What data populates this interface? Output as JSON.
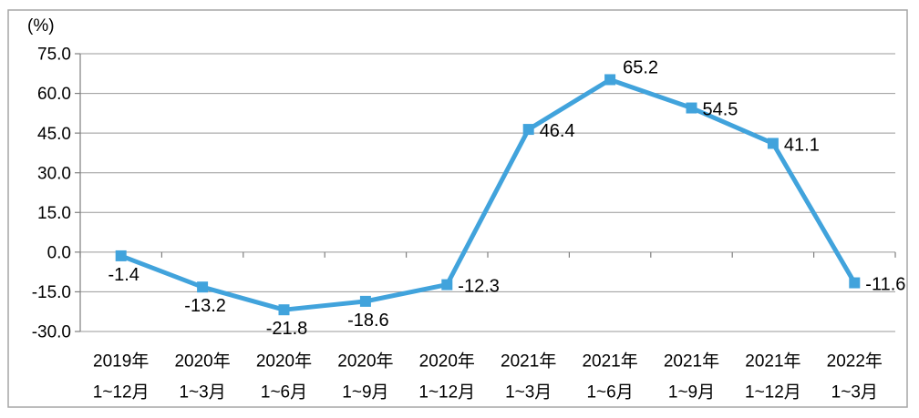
{
  "colors": {
    "series": "#41A3DC",
    "grid": "#999999",
    "axis": "#7F7F7F",
    "frame": "#A6A6A6",
    "text": "#000000",
    "background": "#FFFFFF"
  },
  "chart_data": {
    "type": "line",
    "title": "",
    "xlabel": "",
    "ylabel": "(%)",
    "ylim": [
      -30,
      75
    ],
    "ytick_step": 15,
    "yticks": [
      75,
      60,
      45,
      30,
      15,
      0,
      -15,
      -30
    ],
    "ytick_labels": [
      "75.0",
      "60.0",
      "45.0",
      "30.0",
      "15.0",
      "0.0",
      "-15.0",
      "-30.0"
    ],
    "grid": true,
    "legend": "none",
    "categories": [
      {
        "line1": "2019年",
        "line2": "1~12月"
      },
      {
        "line1": "2020年",
        "line2": "1~3月"
      },
      {
        "line1": "2020年",
        "line2": "1~6月"
      },
      {
        "line1": "2020年",
        "line2": "1~9月"
      },
      {
        "line1": "2020年",
        "line2": "1~12月"
      },
      {
        "line1": "2021年",
        "line2": "1~3月"
      },
      {
        "line1": "2021年",
        "line2": "1~6月"
      },
      {
        "line1": "2021年",
        "line2": "1~9月"
      },
      {
        "line1": "2021年",
        "line2": "1~12月"
      },
      {
        "line1": "2022年",
        "line2": "1~3月"
      }
    ],
    "values": [
      -1.4,
      -13.2,
      -21.8,
      -18.6,
      -12.3,
      46.4,
      65.2,
      54.5,
      41.1,
      -11.6
    ],
    "point_labels": [
      "-1.4",
      "-13.2",
      "-21.8",
      "-18.6",
      "-12.3",
      "46.4",
      "65.2",
      "54.5",
      "41.1",
      "-11.6"
    ],
    "label_placement": [
      "below",
      "below",
      "below",
      "below",
      "right",
      "right",
      "above-right",
      "right",
      "right",
      "right"
    ],
    "marker": "square"
  }
}
